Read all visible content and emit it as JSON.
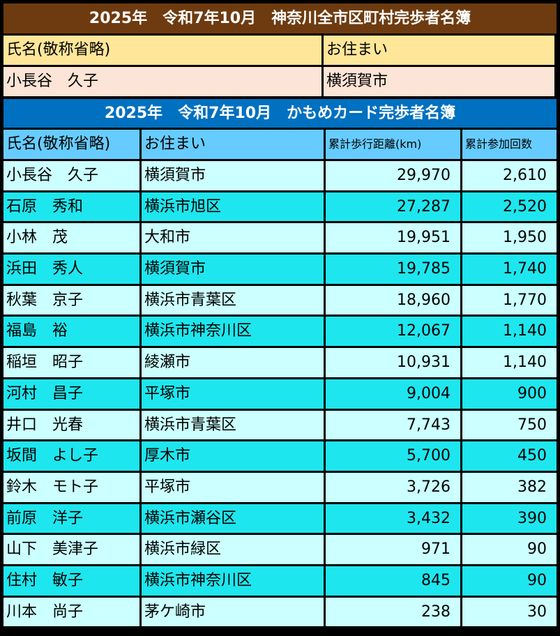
{
  "top_table": {
    "title": "2025年　令和7年10月　神奈川全市区町村完歩者名簿",
    "headers": {
      "name": "氏名(敬称省略)",
      "address": "お住まい"
    },
    "rows": [
      {
        "name": "小長谷　久子",
        "address": "横須賀市"
      }
    ]
  },
  "kamome_table": {
    "title": "2025年　令和7年10月　かもめカード完歩者名簿",
    "headers": {
      "name": "氏名(敬称省略)",
      "address": "お住まい",
      "distance": "累計歩行距離(km)",
      "count": "累計参加回数"
    },
    "rows": [
      {
        "name": "小長谷　久子",
        "address": "横須賀市",
        "distance": "29,970",
        "count": "2,610"
      },
      {
        "name": "石原　秀和",
        "address": "横浜市旭区",
        "distance": "27,287",
        "count": "2,520"
      },
      {
        "name": "小林　茂",
        "address": "大和市",
        "distance": "19,951",
        "count": "1,950"
      },
      {
        "name": "浜田　秀人",
        "address": "横須賀市",
        "distance": "19,785",
        "count": "1,740"
      },
      {
        "name": "秋葉　京子",
        "address": "横浜市青葉区",
        "distance": "18,960",
        "count": "1,770"
      },
      {
        "name": "福島　裕",
        "address": "横浜市神奈川区",
        "distance": "12,067",
        "count": "1,140"
      },
      {
        "name": "稲垣　昭子",
        "address": "綾瀬市",
        "distance": "10,931",
        "count": "1,140"
      },
      {
        "name": "河村　昌子",
        "address": "平塚市",
        "distance": "9,004",
        "count": "900"
      },
      {
        "name": "井口　光春",
        "address": "横浜市青葉区",
        "distance": "7,743",
        "count": "750"
      },
      {
        "name": "坂間　よし子",
        "address": "厚木市",
        "distance": "5,700",
        "count": "450"
      },
      {
        "name": "鈴木　モト子",
        "address": "平塚市",
        "distance": "3,726",
        "count": "382"
      },
      {
        "name": "前原　洋子",
        "address": "横浜市瀬谷区",
        "distance": "3,432",
        "count": "390"
      },
      {
        "name": "山下　美津子",
        "address": "横浜市緑区",
        "distance": "971",
        "count": "90"
      },
      {
        "name": "住村　敏子",
        "address": "横浜市神奈川区",
        "distance": "845",
        "count": "90"
      },
      {
        "name": "川本　尚子",
        "address": "茅ケ崎市",
        "distance": "238",
        "count": "30"
      }
    ]
  },
  "colors": {
    "brown_title": "#6e3b10",
    "blue_title": "#0070c0",
    "header_yellow": "#ffe699",
    "row_peach": "#fce4d6",
    "header_blue": "#66ccff",
    "row_light": "#ccffff",
    "row_cyan": "#1ee6ee"
  }
}
